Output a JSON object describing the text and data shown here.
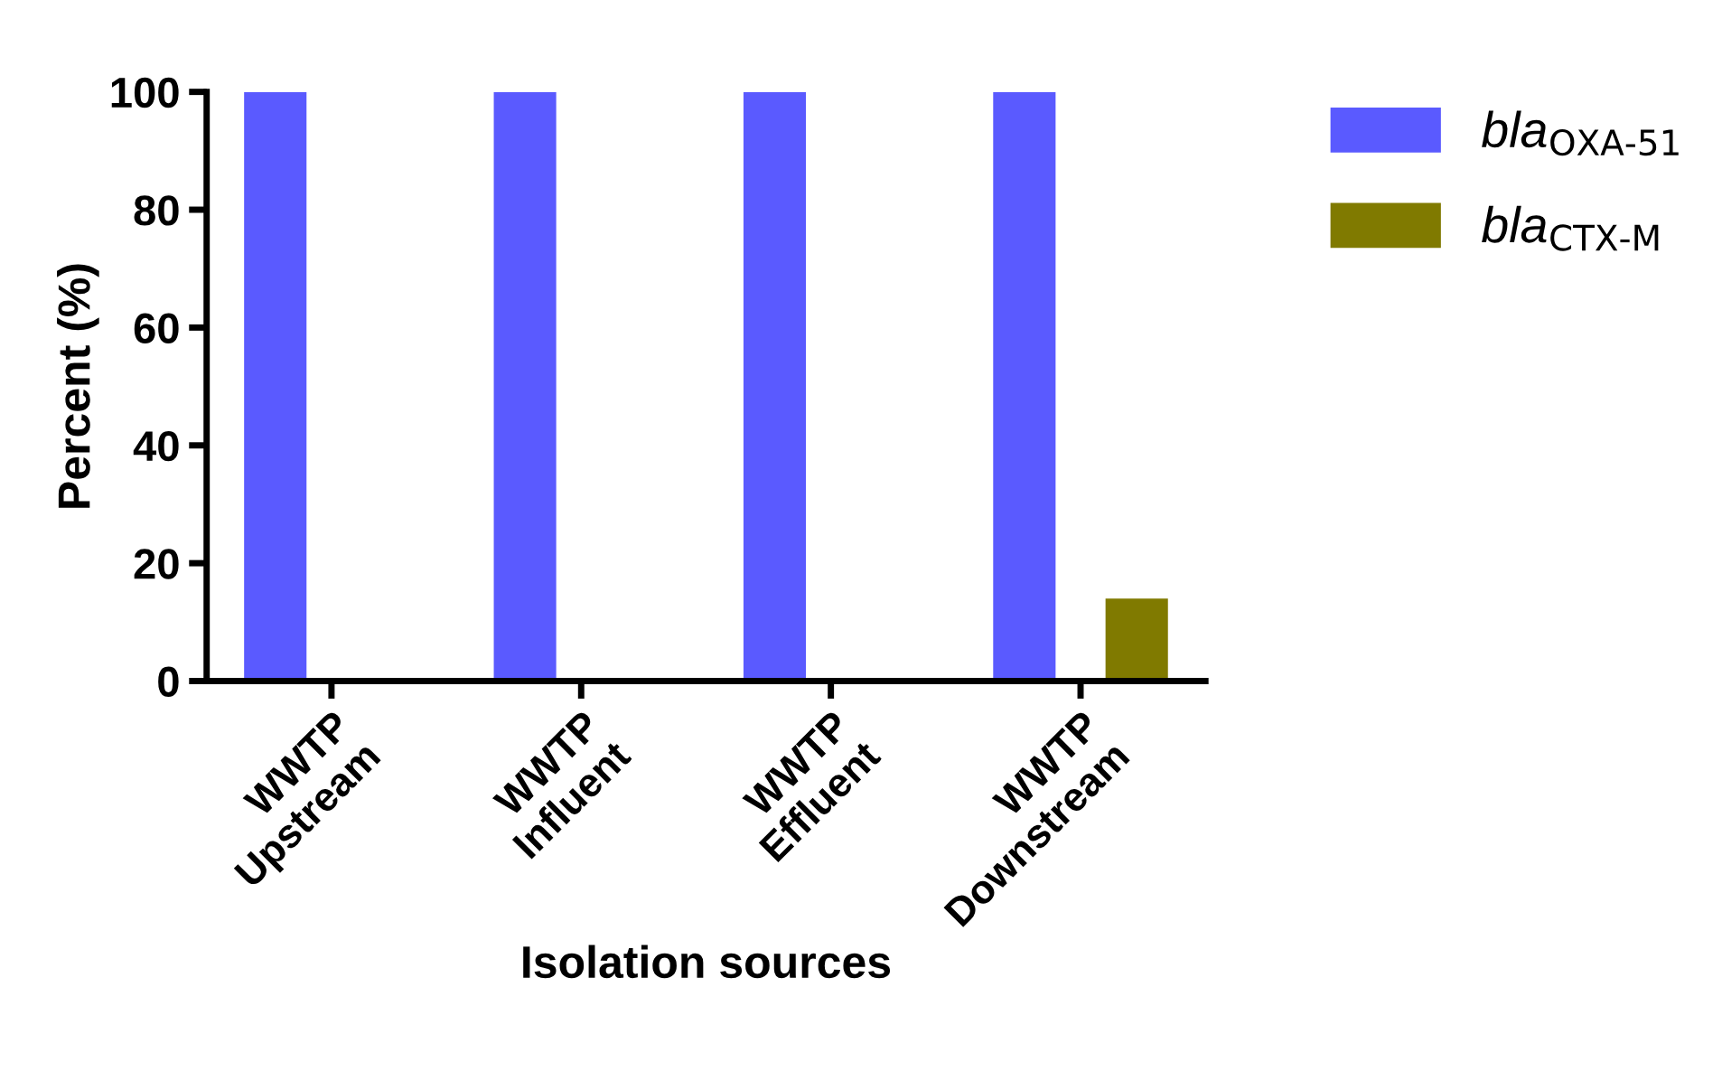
{
  "chart_data": {
    "type": "bar",
    "xlabel": "Isolation sources",
    "ylabel": "Percent (%)",
    "categories": [
      "WWTP\nUpstream",
      "WWTP\nInfluent",
      "WWTP\nEffluent",
      "WWTP\nDownstream"
    ],
    "series": [
      {
        "name": "bla$_{OXA-51}$",
        "color": "#5a5aff",
        "values": [
          100,
          100,
          100,
          100
        ]
      },
      {
        "name": "bla$_{CTX-M}$",
        "color": "#807a00",
        "values": [
          0,
          0,
          0,
          14
        ]
      }
    ],
    "ylim": [
      0,
      100
    ],
    "yticks": [
      0,
      20,
      40,
      60,
      80,
      100
    ],
    "grid": false,
    "legend": "top right"
  }
}
